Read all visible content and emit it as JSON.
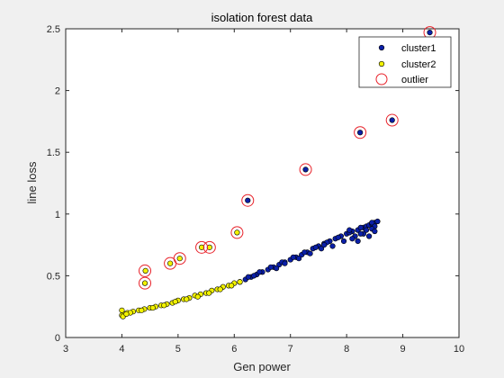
{
  "chart_data": {
    "type": "scatter",
    "title": "isolation forest data",
    "xlabel": "Gen power",
    "ylabel": "line loss",
    "xlim": [
      3,
      10
    ],
    "ylim": [
      0,
      2.5
    ],
    "xticks": [
      "3",
      "4",
      "5",
      "6",
      "7",
      "8",
      "9",
      "10"
    ],
    "yticks": [
      "0",
      "0.5",
      "1",
      "1.5",
      "2",
      "2.5"
    ],
    "legend_position": "top-right",
    "series": [
      {
        "name": "cluster1",
        "marker": "filled-dot",
        "color": "#0a1fa8",
        "x": [
          6.1,
          6.2,
          6.3,
          6.4,
          6.5,
          6.6,
          6.7,
          6.8,
          6.9,
          7.0,
          7.1,
          7.2,
          7.3,
          7.4,
          7.5,
          7.6,
          7.7,
          7.8,
          7.9,
          8.0,
          8.1,
          8.2,
          8.3,
          8.35,
          8.4,
          8.45,
          8.5,
          8.55,
          6.25,
          6.45,
          6.65,
          6.85,
          7.05,
          7.25,
          7.45,
          7.65,
          7.85,
          8.05,
          8.25,
          8.45,
          6.35,
          6.75,
          7.15,
          7.55,
          7.95,
          8.15,
          8.3,
          8.5,
          8.2,
          8.4,
          7.35,
          7.75,
          8.1,
          8.25,
          8.05,
          6.9,
          7.6,
          8.35,
          8.45,
          8.5,
          6.24,
          7.27,
          8.24,
          8.81,
          9.48
        ],
        "y": [
          0.45,
          0.47,
          0.49,
          0.51,
          0.53,
          0.55,
          0.57,
          0.59,
          0.61,
          0.63,
          0.65,
          0.67,
          0.69,
          0.72,
          0.74,
          0.76,
          0.78,
          0.8,
          0.82,
          0.84,
          0.86,
          0.87,
          0.89,
          0.9,
          0.91,
          0.92,
          0.93,
          0.94,
          0.49,
          0.53,
          0.57,
          0.61,
          0.65,
          0.69,
          0.73,
          0.77,
          0.81,
          0.85,
          0.89,
          0.93,
          0.5,
          0.56,
          0.64,
          0.72,
          0.78,
          0.82,
          0.84,
          0.9,
          0.78,
          0.82,
          0.68,
          0.74,
          0.8,
          0.84,
          0.87,
          0.6,
          0.75,
          0.87,
          0.88,
          0.86,
          1.11,
          1.36,
          1.66,
          1.76,
          2.47
        ]
      },
      {
        "name": "cluster2",
        "marker": "filled-dot",
        "color": "#f2f200",
        "x": [
          4.0,
          4.05,
          4.1,
          4.2,
          4.3,
          4.4,
          4.5,
          4.6,
          4.7,
          4.8,
          4.9,
          5.0,
          5.1,
          5.2,
          5.3,
          5.4,
          5.5,
          5.6,
          5.7,
          5.8,
          5.9,
          6.0,
          6.1,
          4.02,
          4.15,
          4.35,
          4.55,
          4.75,
          4.95,
          5.15,
          5.35,
          5.55,
          5.75,
          5.95,
          4.0,
          4.08,
          4.42,
          4.41,
          4.86,
          5.03,
          5.42,
          5.56,
          6.05
        ],
        "y": [
          0.18,
          0.19,
          0.2,
          0.21,
          0.22,
          0.23,
          0.24,
          0.25,
          0.26,
          0.27,
          0.28,
          0.3,
          0.31,
          0.32,
          0.34,
          0.35,
          0.36,
          0.38,
          0.39,
          0.41,
          0.42,
          0.44,
          0.45,
          0.17,
          0.2,
          0.22,
          0.24,
          0.26,
          0.29,
          0.31,
          0.33,
          0.36,
          0.39,
          0.42,
          0.22,
          0.19,
          0.54,
          0.44,
          0.6,
          0.64,
          0.73,
          0.73,
          0.85
        ]
      },
      {
        "name": "outlier",
        "marker": "open-circle",
        "color": "#e8222a",
        "x": [
          4.41,
          4.41,
          4.86,
          5.03,
          5.42,
          5.56,
          6.05,
          6.24,
          7.27,
          8.24,
          8.81,
          9.48
        ],
        "y": [
          0.54,
          0.44,
          0.6,
          0.64,
          0.73,
          0.73,
          0.85,
          1.11,
          1.36,
          1.66,
          1.76,
          2.47
        ]
      }
    ]
  }
}
